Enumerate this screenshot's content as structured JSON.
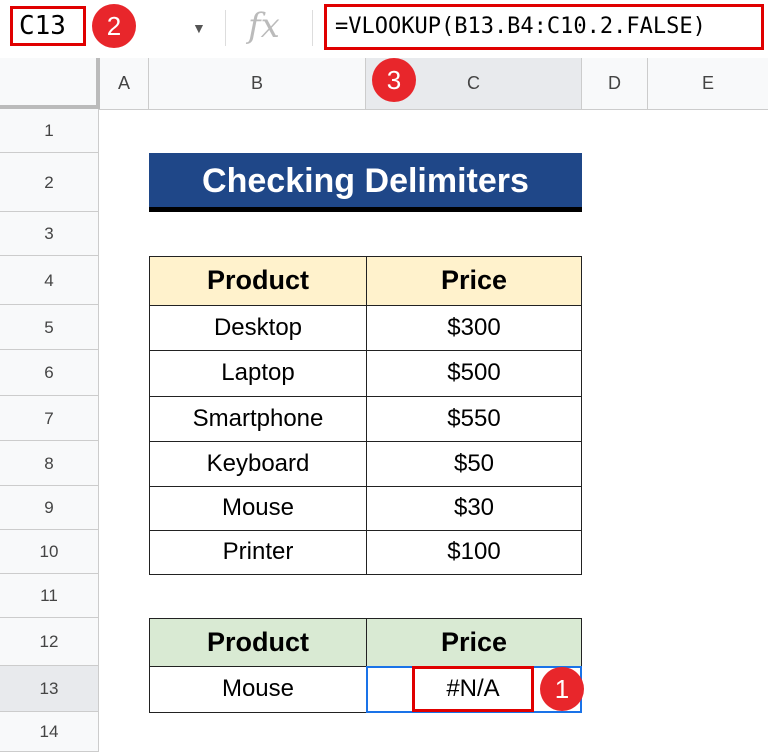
{
  "toolbar": {
    "cell_ref": "C13",
    "fx_label": "fx",
    "formula": "=VLOOKUP(B13.B4:C10.2.FALSE)",
    "dropdown": "▼"
  },
  "badges": [
    "1",
    "2",
    "3"
  ],
  "columns": [
    "A",
    "B",
    "C",
    "D",
    "E"
  ],
  "rows": [
    "1",
    "2",
    "3",
    "4",
    "5",
    "6",
    "7",
    "8",
    "9",
    "10",
    "11",
    "12",
    "13",
    "14"
  ],
  "title": "Checking Delimiters",
  "table": {
    "headers": [
      "Product",
      "Price"
    ],
    "rows": [
      [
        "Desktop",
        "$300"
      ],
      [
        "Laptop",
        "$500"
      ],
      [
        "Smartphone",
        "$550"
      ],
      [
        "Keyboard",
        "$50"
      ],
      [
        "Mouse",
        "$30"
      ],
      [
        "Printer",
        "$100"
      ]
    ]
  },
  "lookup": {
    "headers": [
      "Product",
      "Price"
    ],
    "product": "Mouse",
    "result": "#N/A"
  },
  "colors": {
    "title_bg": "#1f4788",
    "table_header": "#fff2cc",
    "lookup_header": "#d9ead3",
    "highlight": "#e00000",
    "selection": "#1a73e8"
  }
}
